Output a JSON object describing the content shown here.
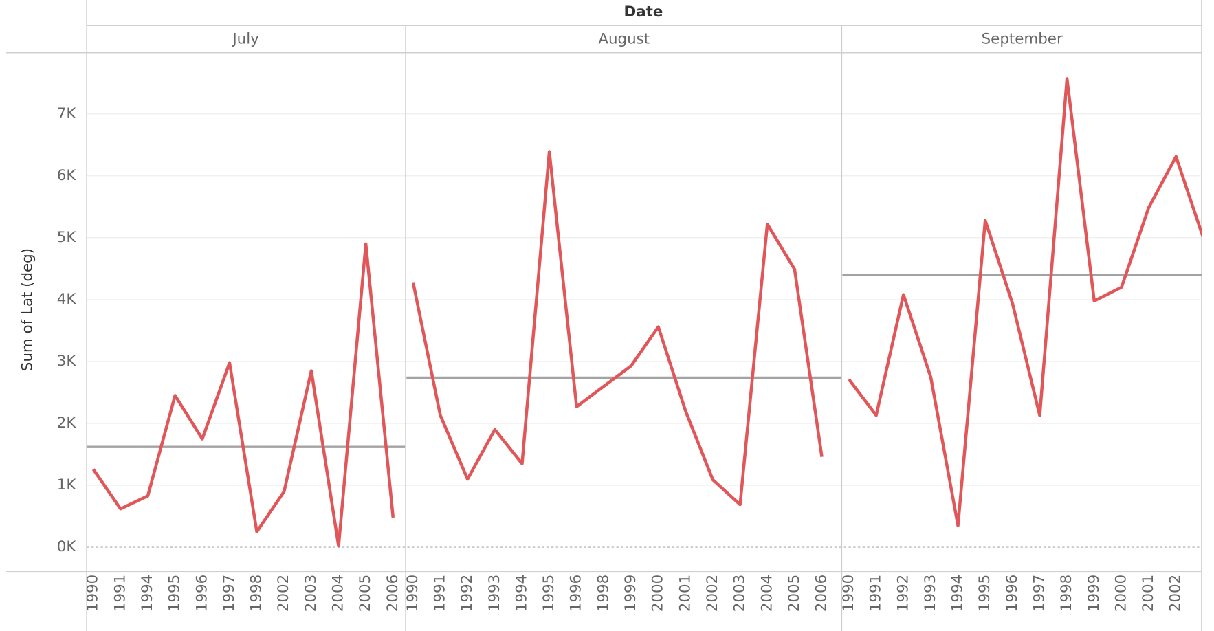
{
  "chart_data": {
    "type": "line",
    "title": "Date",
    "y_label": "Sum of Lat (deg)",
    "ylim": [
      -390,
      7990
    ],
    "yticks": [
      {
        "value": 0,
        "label": "0K"
      },
      {
        "value": 1000,
        "label": "1K"
      },
      {
        "value": 2000,
        "label": "2K"
      },
      {
        "value": 3000,
        "label": "3K"
      },
      {
        "value": 4000,
        "label": "4K"
      },
      {
        "value": 5000,
        "label": "5K"
      },
      {
        "value": 6000,
        "label": "6K"
      },
      {
        "value": 7000,
        "label": "7K"
      }
    ],
    "grid": true,
    "color": "#e15759",
    "reference_color": "#a3a3a3",
    "panels": [
      {
        "name": "July",
        "categories": [
          "1990",
          "1991",
          "1994",
          "1995",
          "1996",
          "1997",
          "1998",
          "2002",
          "2003",
          "2004",
          "2005",
          "2006"
        ],
        "values": [
          1260,
          620,
          830,
          2450,
          1750,
          2980,
          250,
          900,
          2850,
          20,
          4900,
          480
        ],
        "reference_line": 1620
      },
      {
        "name": "August",
        "categories": [
          "1990",
          "1991",
          "1992",
          "1993",
          "1994",
          "1995",
          "1996",
          "1998",
          "1999",
          "2000",
          "2001",
          "2002",
          "2003",
          "2004",
          "2005",
          "2006"
        ],
        "values": [
          4280,
          2130,
          1100,
          1900,
          1350,
          6390,
          2270,
          2600,
          2930,
          3560,
          2200,
          1090,
          690,
          5220,
          4490,
          1460
        ],
        "reference_line": 2740
      },
      {
        "name": "September",
        "categories": [
          "1990",
          "1991",
          "1992",
          "1993",
          "1994",
          "1995",
          "1996",
          "1997",
          "1998",
          "1999",
          "2000",
          "2001",
          "2002",
          null
        ],
        "values": [
          2710,
          2130,
          4080,
          2750,
          350,
          5280,
          3940,
          2130,
          7570,
          3980,
          4200,
          5490,
          6310,
          5000
        ],
        "reference_line": 4400
      }
    ]
  }
}
